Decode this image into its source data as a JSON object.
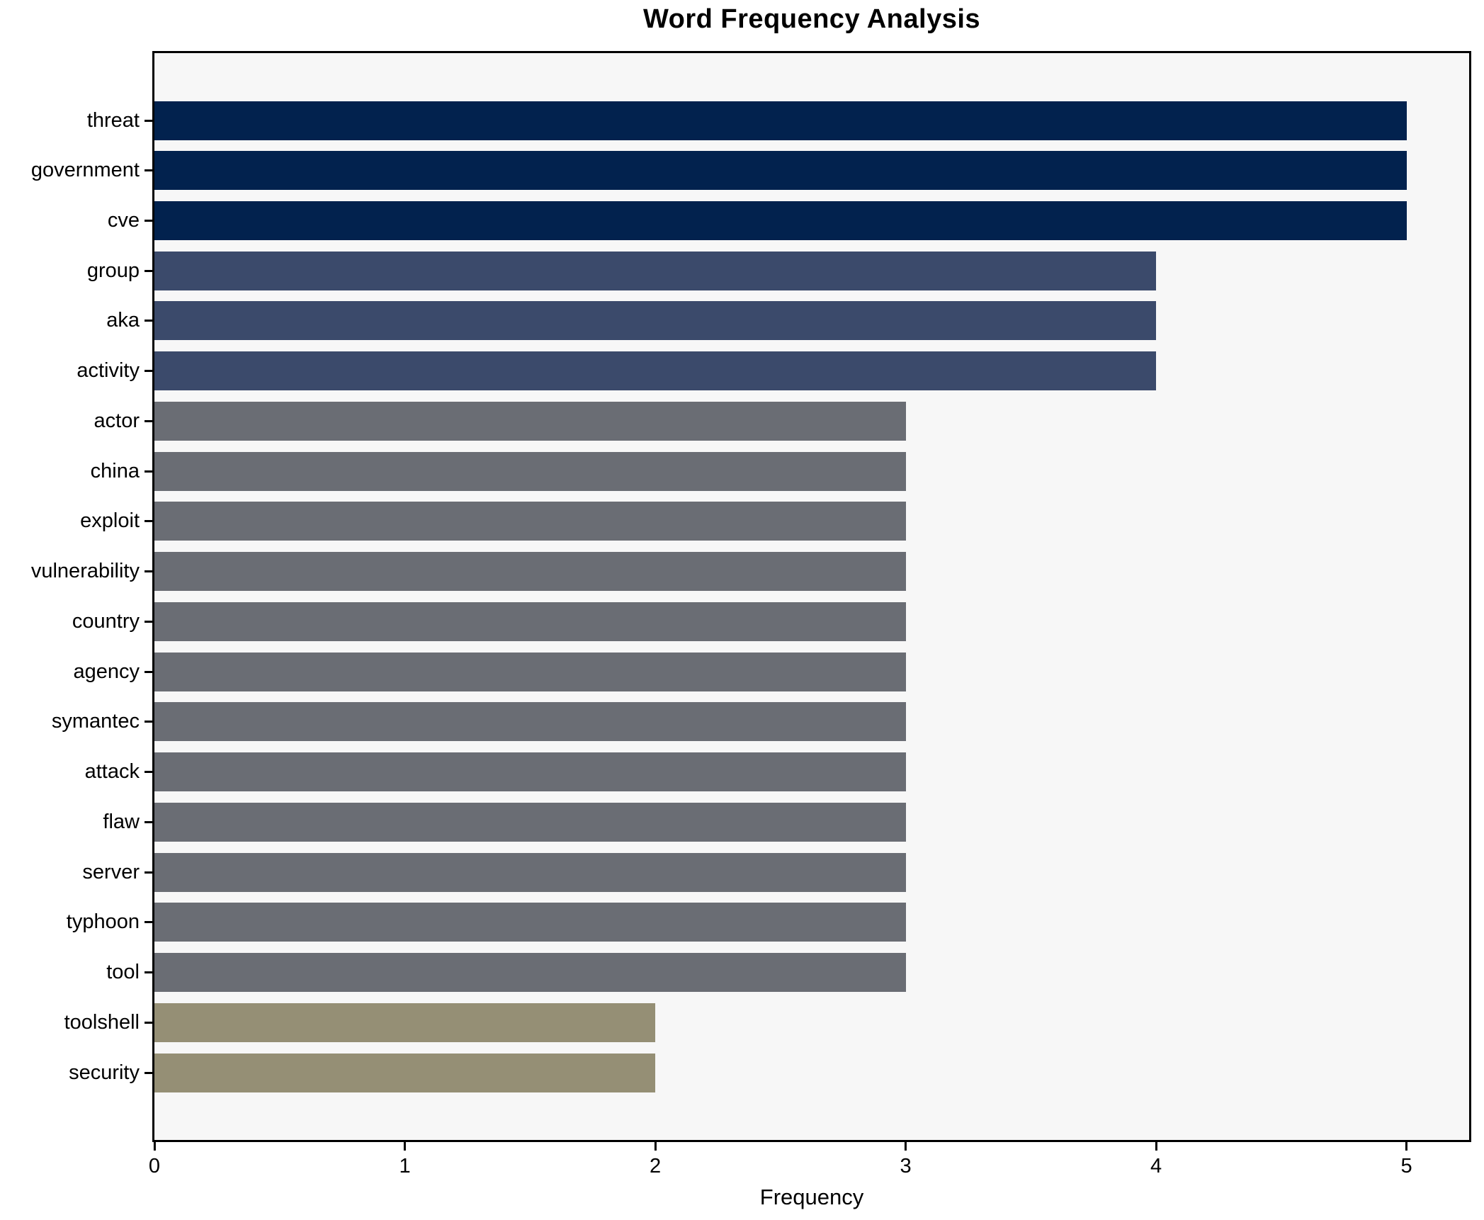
{
  "chart_data": {
    "type": "bar",
    "orientation": "horizontal",
    "title": "Word Frequency Analysis",
    "xlabel": "Frequency",
    "ylabel": "",
    "categories": [
      "threat",
      "government",
      "cve",
      "group",
      "aka",
      "activity",
      "actor",
      "china",
      "exploit",
      "vulnerability",
      "country",
      "agency",
      "symantec",
      "attack",
      "flaw",
      "server",
      "typhoon",
      "tool",
      "toolshell",
      "security"
    ],
    "values": [
      5,
      5,
      5,
      4,
      4,
      4,
      3,
      3,
      3,
      3,
      3,
      3,
      3,
      3,
      3,
      3,
      3,
      3,
      2,
      2
    ],
    "xticks": [
      0,
      1,
      2,
      3,
      4,
      5
    ],
    "xlim": [
      0,
      5.25
    ],
    "grid": false,
    "legend_position": "none",
    "colors_by_value": {
      "5": "#02224e",
      "4": "#3b4a6b",
      "3": "#6a6d74",
      "2": "#958f75"
    },
    "plot_bg_color": "#f7f7f7",
    "figure_bg_color": "#ffffff",
    "spine_color": "#000000"
  }
}
